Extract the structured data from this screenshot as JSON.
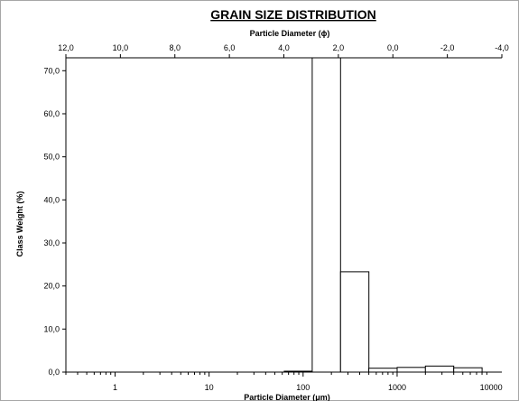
{
  "chart_data": {
    "type": "bar",
    "title": "GRAIN SIZE DISTRIBUTION",
    "xlabel": "Particle Diameter (μm)",
    "x2label": "Particle Diameter (ϕ)",
    "ylabel": "Class Weight (%)",
    "x_scale": "log",
    "xlim": [
      0.3,
      13000
    ],
    "ylim": [
      0,
      73
    ],
    "x2lim": [
      12.0,
      -4.0
    ],
    "x_ticks": [
      {
        "v": 1,
        "label": "1"
      },
      {
        "v": 10,
        "label": "10"
      },
      {
        "v": 100,
        "label": "100"
      },
      {
        "v": 1000,
        "label": "1000"
      },
      {
        "v": 10000,
        "label": "10000"
      }
    ],
    "x2_ticks": [
      {
        "v": 12.0,
        "label": "12,0"
      },
      {
        "v": 10.0,
        "label": "10,0"
      },
      {
        "v": 8.0,
        "label": "8,0"
      },
      {
        "v": 6.0,
        "label": "6,0"
      },
      {
        "v": 4.0,
        "label": "4,0"
      },
      {
        "v": 2.0,
        "label": "2,0"
      },
      {
        "v": 0.0,
        "label": "0,0"
      },
      {
        "v": -2.0,
        "label": "-2,0"
      },
      {
        "v": -4.0,
        "label": "-4,0"
      }
    ],
    "y_ticks": [
      {
        "v": 0,
        "label": "0,0"
      },
      {
        "v": 10,
        "label": "10,0"
      },
      {
        "v": 20,
        "label": "20,0"
      },
      {
        "v": 30,
        "label": "30,0"
      },
      {
        "v": 40,
        "label": "40,0"
      },
      {
        "v": 50,
        "label": "50,0"
      },
      {
        "v": 60,
        "label": "60,0"
      },
      {
        "v": 70,
        "label": "70,0"
      }
    ],
    "bins": [
      {
        "x0": 63,
        "x1": 125,
        "value": 0.2
      },
      {
        "x0": 125,
        "x1": 250,
        "value": 73.0
      },
      {
        "x0": 250,
        "x1": 500,
        "value": 23.3
      },
      {
        "x0": 500,
        "x1": 1000,
        "value": 0.9
      },
      {
        "x0": 1000,
        "x1": 2000,
        "value": 1.1
      },
      {
        "x0": 2000,
        "x1": 4000,
        "value": 1.4
      },
      {
        "x0": 4000,
        "x1": 8000,
        "value": 1.0
      }
    ],
    "grid": false
  }
}
